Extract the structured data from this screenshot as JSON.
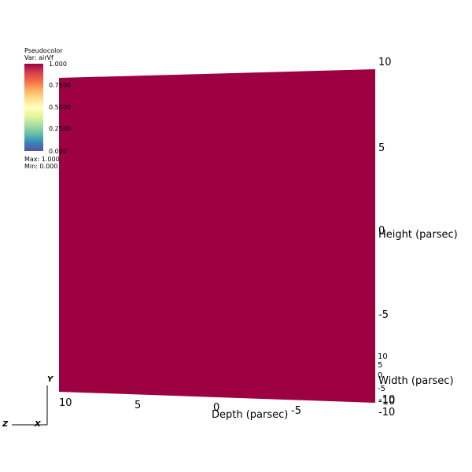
{
  "legend": {
    "title": "Pseudocolor",
    "var_label": "Var: airVf",
    "ticks": [
      "1.000",
      "0.7500",
      "0.5000",
      "0.2500",
      "0.000"
    ],
    "max_label": "Max: 1.000",
    "min_label": "Min: 0.000",
    "colormap_colors": [
      "#9e0142",
      "#d53e4f",
      "#f46d43",
      "#fdae61",
      "#fee08b",
      "#ffffbf",
      "#e6f598",
      "#abdda4",
      "#66c2a5",
      "#3288bd",
      "#5e4fa2"
    ]
  },
  "chart_data": {
    "type": "heatmap",
    "variable": "airVf",
    "value_range": [
      0.0,
      1.0
    ],
    "rendered_value": 1.0,
    "surface_color": "#9e0142",
    "axes": {
      "height": {
        "label": "Height (parsec)",
        "ticks": [
          "10",
          "5",
          "0",
          "-5",
          "-10"
        ]
      },
      "depth": {
        "label": "Depth (parsec)",
        "ticks": [
          "10",
          "5",
          "0",
          "-5",
          "-10"
        ]
      },
      "width": {
        "label": "Width (parsec)",
        "ticks": [
          "10",
          "5",
          "0",
          "-5",
          "-10"
        ]
      }
    }
  },
  "triad": {
    "y": "Y",
    "z": "Z",
    "x": "X"
  }
}
